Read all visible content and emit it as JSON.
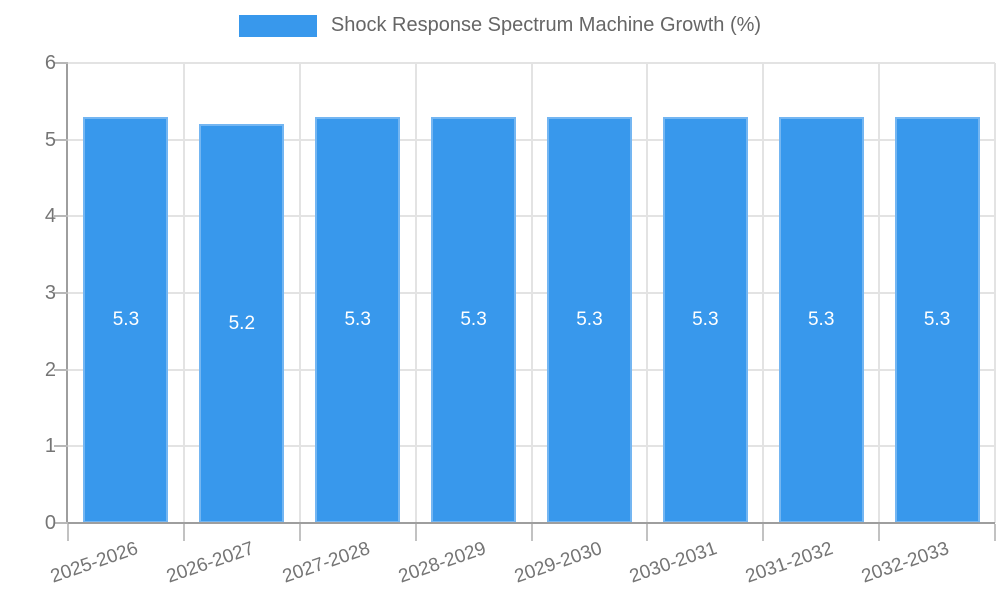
{
  "legend": {
    "label": "Shock Response Spectrum Machine Growth (%)"
  },
  "chart_data": {
    "type": "bar",
    "title": "Shock Response Spectrum Machine Growth (%)",
    "categories": [
      "2025-2026",
      "2026-2027",
      "2027-2028",
      "2028-2029",
      "2029-2030",
      "2030-2031",
      "2031-2032",
      "2032-2033"
    ],
    "series": [
      {
        "name": "Shock Response Spectrum Machine Growth (%)",
        "values": [
          5.3,
          5.2,
          5.3,
          5.3,
          5.3,
          5.3,
          5.3,
          5.3
        ]
      }
    ],
    "value_labels": [
      "5.3",
      "5.2",
      "5.3",
      "5.3",
      "5.3",
      "5.3",
      "5.3",
      "5.3"
    ],
    "xlabel": "",
    "ylabel": "",
    "ylim": [
      0,
      6
    ],
    "yticks": [
      0,
      1,
      2,
      3,
      4,
      5,
      6
    ],
    "grid": true,
    "legend_position": "top",
    "colors": {
      "bar_fill": "#3898ec",
      "bar_border": "#74b6f2",
      "value_label": "#ffffff",
      "axis_text": "#757575",
      "legend_text": "#666666",
      "gridline": "#e3e3e3",
      "axis_line": "#9e9e9e"
    }
  }
}
